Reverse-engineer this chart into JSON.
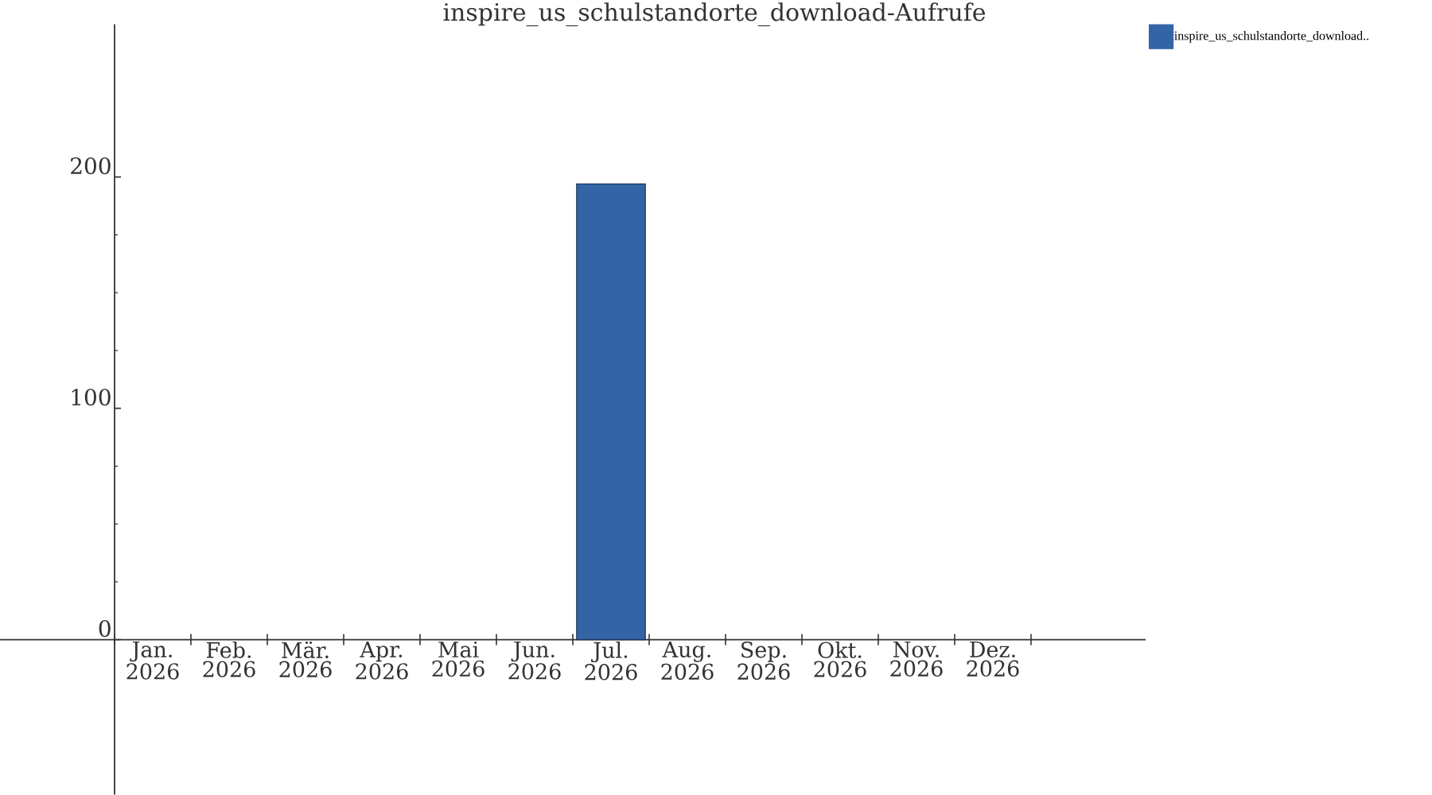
{
  "chart_data": {
    "type": "bar",
    "title": "inspire_us_schulstandorte_download-Aufrufe",
    "categories": [
      "Jan. 2026",
      "Feb. 2026",
      "Mär. 2026",
      "Apr. 2026",
      "Mai 2026",
      "Jun. 2026",
      "Jul. 2026",
      "Aug. 2026",
      "Sep. 2026",
      "Okt. 2026",
      "Nov. 2026",
      "Dez. 2026"
    ],
    "series": [
      {
        "name": "inspire_us_schulstandorte_download..",
        "color": "#3364a6",
        "values": [
          null,
          null,
          null,
          null,
          null,
          null,
          197,
          null,
          null,
          null,
          null,
          null
        ]
      }
    ],
    "ylim": [
      -67,
      266
    ],
    "yticks": [
      0,
      100,
      200
    ],
    "legend": "top right"
  }
}
